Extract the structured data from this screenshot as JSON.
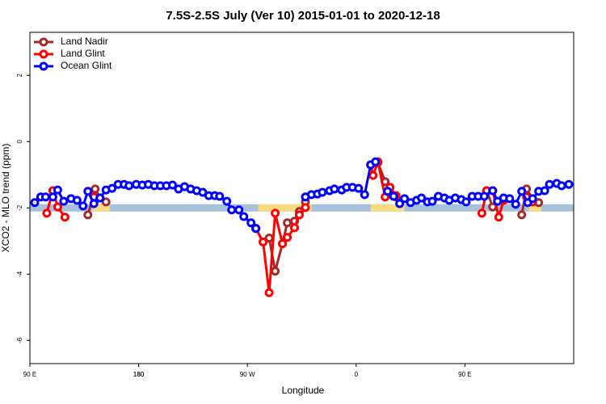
{
  "chart_data": {
    "type": "line",
    "title": "7.5S-2.5S July (Ver 10)   2015-01-01 to 2020-12-18",
    "x_label": "Longitude",
    "y_label": "XCO2 - MLO trend (ppm)",
    "xlim": [
      90,
      540
    ],
    "xticks": [
      {
        "value": 90,
        "label": "90 E"
      },
      180,
      {
        "value": 270,
        "label": "90 W"
      },
      {
        "value": 360,
        "label": "0"
      },
      {
        "value": 450,
        "label": "90 E"
      },
      180
    ],
    "ylim": [
      -6.7,
      3.3
    ],
    "yticks": [
      -6,
      -4,
      -2,
      0,
      2
    ],
    "legend": "top-left",
    "background_band": {
      "y": -2,
      "ocean_color": "#a8c0dc",
      "land_color": "#f8dc80",
      "land_ranges": [
        [
          142,
          156
        ],
        [
          279,
          323
        ],
        [
          372,
          400
        ],
        [
          503,
          513
        ]
      ]
    },
    "series": [
      {
        "name": "Land Nadir",
        "color": "#a52a2a",
        "x": [
          138,
          144,
          148,
          153,
          null,
          277,
          283,
          288,
          293,
          299,
          303,
          309,
          313,
          318,
          null,
          372,
          378,
          384,
          388,
          393,
          null,
          468,
          473,
          482,
          null,
          497,
          501,
          506,
          511
        ],
        "values": [
          -2.21,
          -1.43,
          -1.7,
          -1.82,
          null,
          -2.62,
          -3.03,
          -2.91,
          -3.91,
          -3.08,
          -2.45,
          -2.4,
          -2.11,
          -1.82,
          null,
          -0.7,
          -0.63,
          -1.21,
          -1.58,
          -1.67,
          null,
          -1.48,
          -1.97,
          -1.77,
          null,
          -2.21,
          -1.43,
          -1.72,
          -1.84
        ]
      },
      {
        "name": "Land Glint",
        "color": "#ff0000",
        "x": [
          104,
          109,
          113,
          119,
          null,
          143,
          148,
          null,
          277,
          283,
          288,
          293,
          299,
          303,
          309,
          313,
          318,
          null,
          372,
          374,
          378,
          384,
          388,
          393,
          null,
          464,
          468,
          473,
          478,
          482,
          null,
          501,
          506
        ],
        "values": [
          -2.16,
          -1.48,
          -1.97,
          -2.28,
          null,
          -1.67,
          -1.7,
          null,
          -2.62,
          -3.03,
          -4.56,
          -2.16,
          -3.08,
          -2.89,
          -2.6,
          -2.21,
          -1.99,
          null,
          -0.7,
          -1.02,
          -0.61,
          -1.67,
          -1.38,
          -1.63,
          null,
          -2.16,
          -1.48,
          -1.48,
          -2.28,
          -1.77,
          null,
          -1.67,
          -1.82
        ]
      },
      {
        "name": "Ocean Glint",
        "color": "#0000ff",
        "x": [
          94,
          99,
          103,
          109,
          113,
          118,
          124,
          129,
          134,
          138,
          143,
          148,
          153,
          158,
          163,
          168,
          172,
          178,
          183,
          188,
          193,
          198,
          203,
          208,
          213,
          218,
          223,
          228,
          233,
          238,
          243,
          247,
          253,
          257,
          263,
          267,
          273,
          277,
          null,
          318,
          323,
          328,
          332,
          338,
          342,
          348,
          352,
          357,
          362,
          367,
          372,
          376,
          null,
          386,
          391,
          396,
          400,
          405,
          410,
          414,
          419,
          423,
          428,
          433,
          437,
          442,
          447,
          451,
          456,
          461,
          466,
          473,
          477,
          482,
          487,
          492,
          497,
          502,
          506,
          511,
          516,
          520,
          526,
          530,
          536
        ],
        "values": [
          -1.84,
          -1.67,
          -1.67,
          -1.67,
          -1.46,
          -1.8,
          -1.72,
          -1.77,
          -1.94,
          -1.5,
          -1.87,
          -1.7,
          -1.46,
          -1.41,
          -1.29,
          -1.29,
          -1.33,
          -1.29,
          -1.31,
          -1.29,
          -1.33,
          -1.33,
          -1.33,
          -1.31,
          -1.43,
          -1.36,
          -1.43,
          -1.48,
          -1.53,
          -1.63,
          -1.63,
          -1.65,
          -1.8,
          -2.06,
          -2.06,
          -2.26,
          -2.45,
          -2.62,
          null,
          -1.67,
          -1.6,
          -1.58,
          -1.53,
          -1.48,
          -1.43,
          -1.46,
          -1.38,
          -1.38,
          -1.41,
          -1.6,
          -0.7,
          -0.61,
          null,
          -1.5,
          -1.65,
          -1.87,
          -1.72,
          -1.84,
          -1.77,
          -1.7,
          -1.82,
          -1.8,
          -1.65,
          -1.7,
          -1.77,
          -1.7,
          -1.75,
          -1.82,
          -1.65,
          -1.65,
          -1.65,
          -1.48,
          -1.8,
          -1.7,
          -1.72,
          -1.89,
          -1.5,
          -1.84,
          -1.72,
          -1.5,
          -1.48,
          -1.29,
          -1.26,
          -1.33,
          -1.29
        ]
      }
    ]
  }
}
